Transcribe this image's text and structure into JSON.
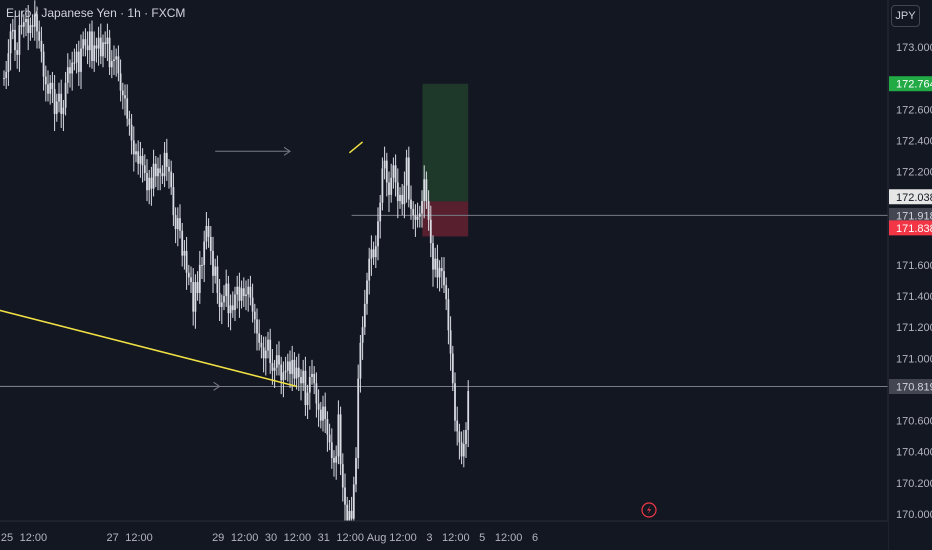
{
  "chart_title": "Euro / Japanese Yen · 1h · FXCM",
  "currency_button": "JPY",
  "colors": {
    "background": "#131722",
    "candle": "#d9dce3",
    "trendline": "#f0e044",
    "hline": "#787b86",
    "target_zone": "#1f3a2b",
    "stop_zone": "#5c2130",
    "label_green": "#22ab45",
    "label_red": "#f23645",
    "axis_text": "#b2b5be",
    "alert_icon": "#f23645"
  },
  "icons": {
    "alert": "lightning-bolt-icon"
  },
  "chart_data": {
    "type": "candlestick",
    "y_axis": {
      "ticks": [
        173.0,
        172.6,
        172.4,
        172.2,
        171.6,
        171.4,
        171.2,
        171.0,
        170.6,
        170.4,
        170.2,
        170.0
      ],
      "tick_labels": [
        "173.000",
        "172.600",
        "172.400",
        "172.200",
        "171.600",
        "171.400",
        "171.200",
        "171.000",
        "170.600",
        "170.400",
        "170.200",
        "170.000"
      ],
      "range": [
        169.94,
        173.28
      ]
    },
    "x_axis": {
      "tick_labels": [
        "25",
        "12:00",
        "27",
        "12:00",
        "29",
        "12:00",
        "30",
        "12:00",
        "31",
        "12:00",
        "Aug",
        "12:00",
        "3",
        "12:00",
        "5",
        "12:00",
        "6"
      ],
      "tick_hours": [
        0,
        12,
        48,
        60,
        96,
        108,
        120,
        132,
        144,
        156,
        168,
        180,
        192,
        204,
        216,
        228,
        240
      ]
    },
    "price_labels": [
      {
        "text": "172.764",
        "value": 172.764,
        "style": "green"
      },
      {
        "text": "172.038",
        "value": 172.038,
        "style": "gray"
      },
      {
        "text": "171.918",
        "value": 171.918,
        "style": "dark"
      },
      {
        "text": "171.838",
        "value": 171.838,
        "style": "red"
      },
      {
        "text": "170.819",
        "value": 170.819,
        "style": "dark"
      }
    ],
    "position_tool": {
      "entry": 171.918,
      "target": 172.764,
      "stop": 171.838
    },
    "hlines": [
      170.819,
      171.918
    ],
    "trendlines": [
      {
        "from": [
          -8,
          171.33
        ],
        "to": [
          133,
          170.82
        ],
        "color": "yellow"
      },
      {
        "from": [
          157,
          172.32
        ],
        "to": [
          163,
          172.39
        ],
        "color": "yellow"
      }
    ],
    "arrows": [
      {
        "from": [
          96,
          172.33
        ],
        "to": [
          130,
          172.33
        ]
      },
      {
        "from": [
          -8,
          170.82
        ],
        "to": [
          98,
          170.82
        ]
      }
    ],
    "closes": [
      172.8,
      172.84,
      172.96,
      173.1,
      173.11,
      172.98,
      172.95,
      173.14,
      173.13,
      173.16,
      173.18,
      173.09,
      173.14,
      173.13,
      173.21,
      173.1,
      173.04,
      172.97,
      172.81,
      172.76,
      172.7,
      172.77,
      172.73,
      172.57,
      172.65,
      172.7,
      172.57,
      172.61,
      172.77,
      172.87,
      172.83,
      172.9,
      172.9,
      172.97,
      172.84,
      172.99,
      173.05,
      173.01,
      172.98,
      173.1,
      172.91,
      173.01,
      172.99,
      173.06,
      172.94,
      173.03,
      173.02,
      173.06,
      172.87,
      172.91,
      172.92,
      172.94,
      172.83,
      172.72,
      172.69,
      172.67,
      172.54,
      172.5,
      172.4,
      172.31,
      172.33,
      172.25,
      172.3,
      172.24,
      172.19,
      172.08,
      172.16,
      172.09,
      172.25,
      172.17,
      172.22,
      172.19,
      172.17,
      172.32,
      172.23,
      172.2,
      172.1,
      171.92,
      171.83,
      171.9,
      171.82,
      171.66,
      171.69,
      171.55,
      171.52,
      171.49,
      171.3,
      171.49,
      171.42,
      171.6,
      171.6,
      171.75,
      171.85,
      171.78,
      171.69,
      171.53,
      171.59,
      171.42,
      171.33,
      171.36,
      171.4,
      171.48,
      171.29,
      171.34,
      171.31,
      171.41,
      171.46,
      171.37,
      171.45,
      171.4,
      171.41,
      171.46,
      171.39,
      171.3,
      171.25,
      171.16,
      171.1,
      171.07,
      171.0,
      171.05,
      171.12,
      170.97,
      170.92,
      170.94,
      171.02,
      170.96,
      170.86,
      170.91,
      170.92,
      170.98,
      170.9,
      170.99,
      170.87,
      170.94,
      170.88,
      170.84,
      170.92,
      170.7,
      170.78,
      170.88,
      170.9,
      170.84,
      170.71,
      170.67,
      170.6,
      170.69,
      170.61,
      170.51,
      170.46,
      170.36,
      170.33,
      170.37,
      170.64,
      170.32,
      170.17,
      170.06,
      169.95,
      170.02,
      169.97,
      170.19,
      170.36,
      170.87,
      171.1,
      171.2,
      171.35,
      171.5,
      171.64,
      171.7,
      171.65,
      171.72,
      171.88,
      172.0,
      172.22,
      172.27,
      172.13,
      172.05,
      172.16,
      172.24,
      172.13,
      172.01,
      172.05,
      171.99,
      172.11,
      172.29,
      172.02,
      171.96,
      171.92,
      171.89,
      171.91,
      171.93,
      172.01,
      172.15,
      172.01,
      171.89,
      171.74,
      171.57,
      171.64,
      171.52,
      171.58,
      171.56,
      171.47,
      171.38,
      171.18,
      171.03,
      170.84,
      170.6,
      170.53,
      170.46,
      170.37,
      170.45,
      170.54,
      170.79
    ]
  }
}
